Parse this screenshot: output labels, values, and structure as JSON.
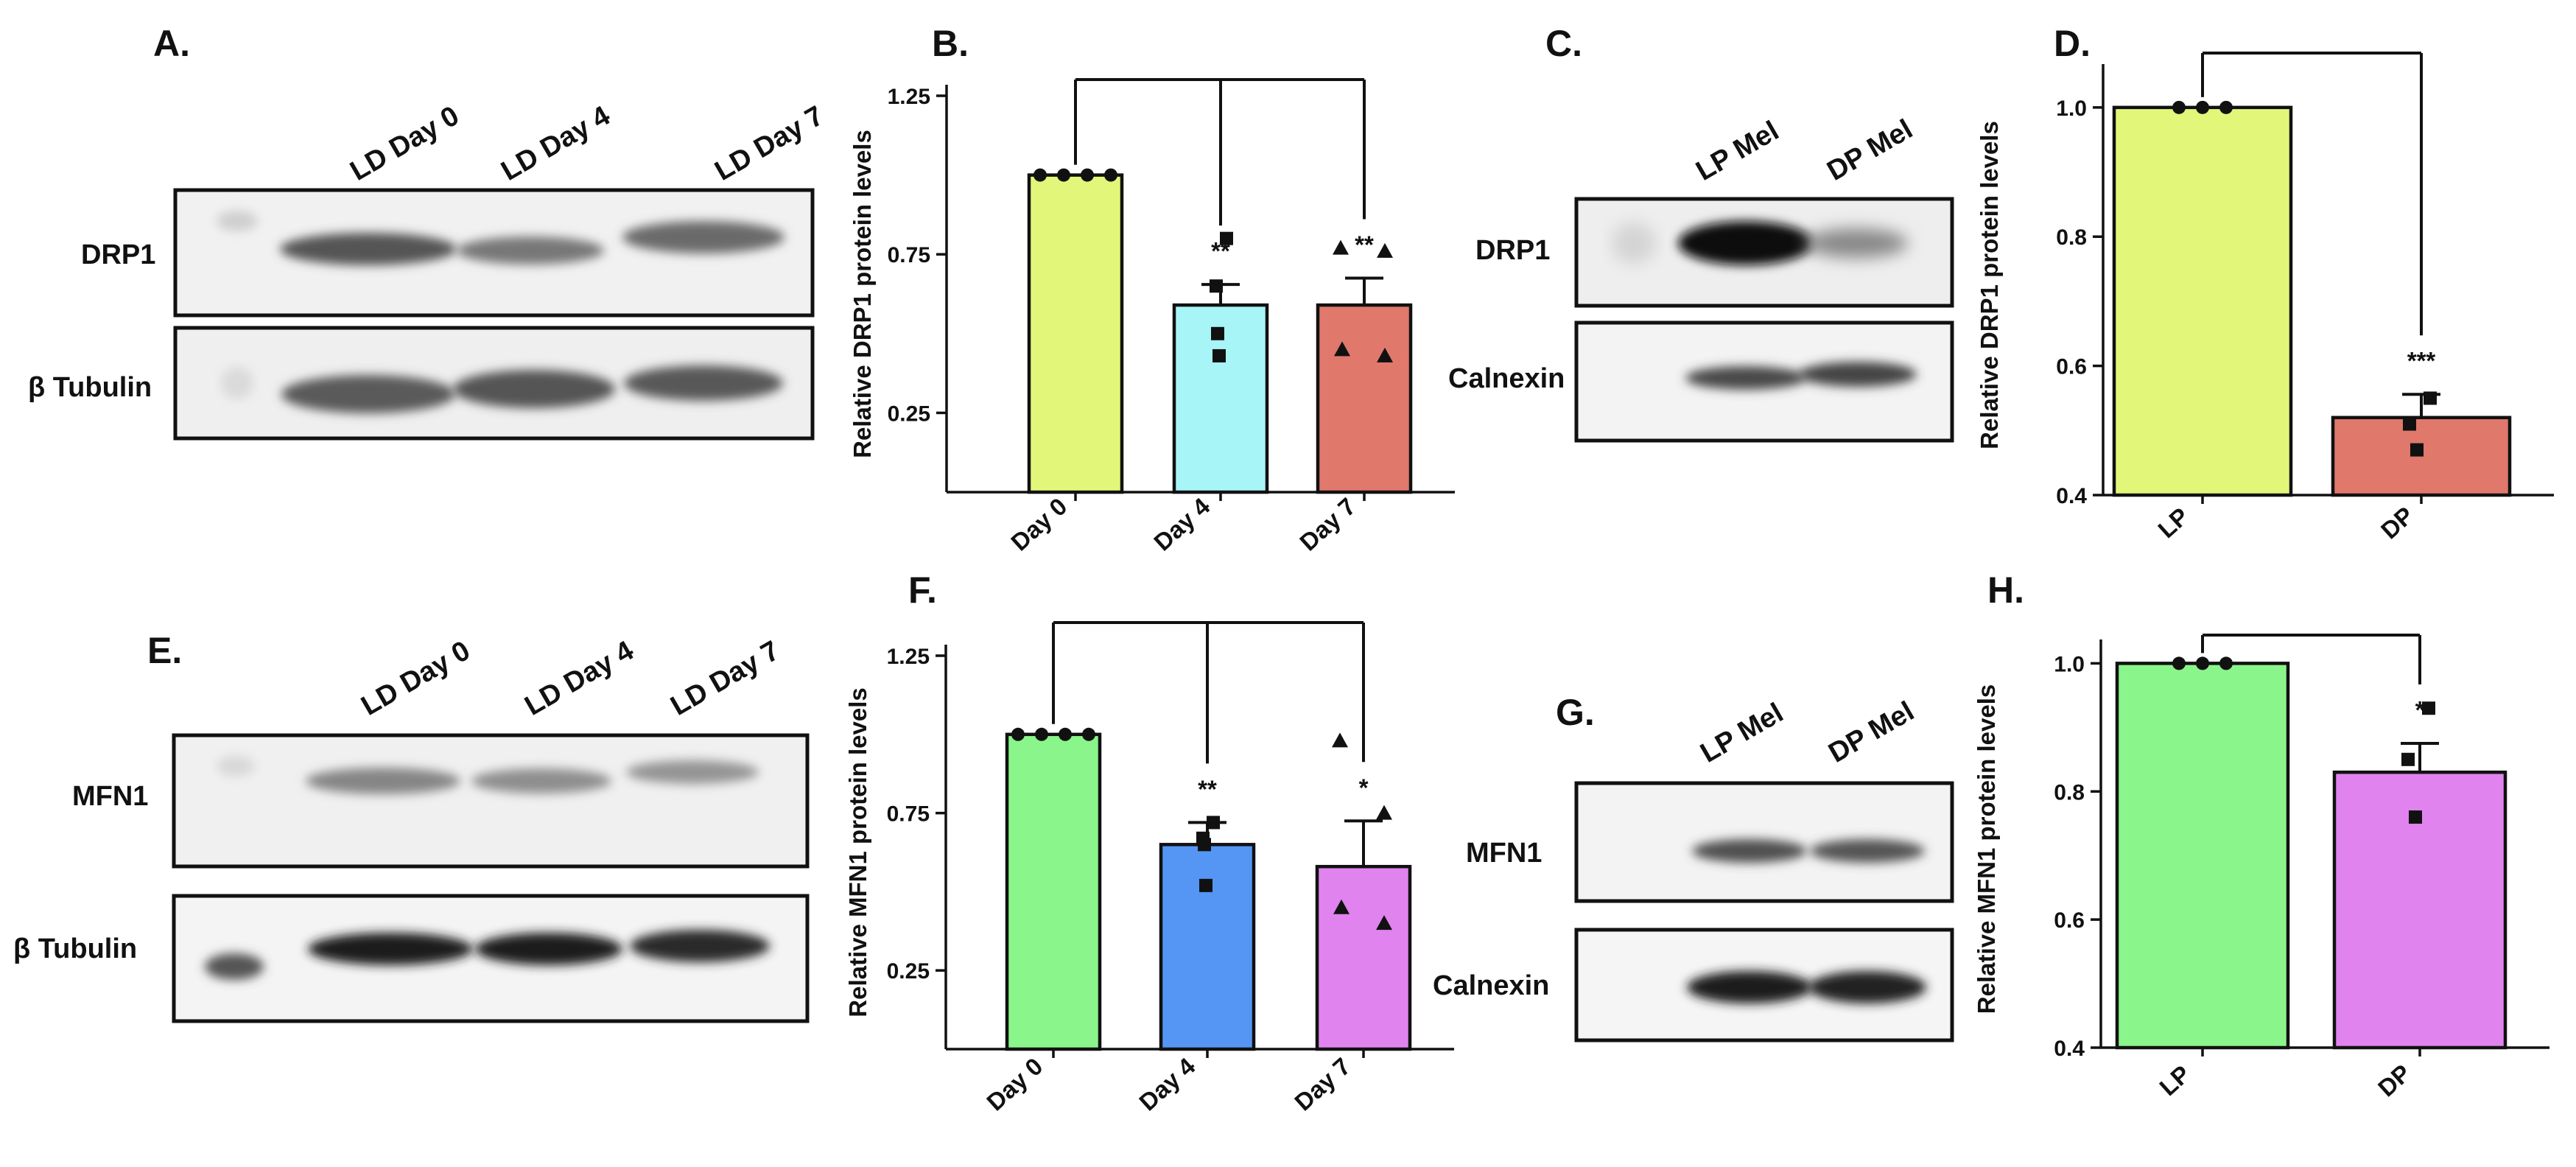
{
  "panels": {
    "A": "A.",
    "B": "B.",
    "C": "C.",
    "D": "D.",
    "E": "E.",
    "F": "F.",
    "G": "G.",
    "H": "H."
  },
  "blots": {
    "A": {
      "lanes": [
        "LD Day 0",
        "LD Day 4",
        "LD Day 7"
      ],
      "rows": [
        "DRP1",
        "β Tubulin"
      ]
    },
    "C": {
      "lanes": [
        "LP Mel",
        "DP Mel"
      ],
      "rows": [
        "DRP1",
        "Calnexin"
      ]
    },
    "E": {
      "lanes": [
        "LD Day 0",
        "LD Day 4",
        "LD Day 7"
      ],
      "rows": [
        "MFN1",
        "β Tubulin"
      ]
    },
    "G": {
      "lanes": [
        "LP Mel",
        "DP Mel"
      ],
      "rows": [
        "MFN1",
        "Calnexin"
      ]
    }
  },
  "colors": {
    "B": [
      "#e2f77a",
      "#a8f5f8",
      "#e0786c"
    ],
    "D": [
      "#e2f77a",
      "#e0786c"
    ],
    "F": [
      "#8af58a",
      "#5596f5",
      "#e083ef"
    ],
    "H": [
      "#8af58a",
      "#e083ef"
    ]
  },
  "chart_data": [
    {
      "id": "B",
      "type": "bar",
      "categories": [
        "Day 0",
        "Day 4",
        "Day 7"
      ],
      "values": [
        1.0,
        0.59,
        0.59
      ],
      "errors": [
        0.0,
        0.065,
        0.085
      ],
      "points": [
        [
          1.0,
          1.0,
          1.0,
          1.0
        ],
        [
          0.8,
          0.65,
          0.5,
          0.43
        ],
        [
          0.77,
          0.76,
          0.43,
          0.45
        ]
      ],
      "markers": [
        "circle",
        "square",
        "triangle"
      ],
      "significance": [
        "",
        "**",
        "**"
      ],
      "xlabel": "",
      "ylabel": "Relative DRP1 protein levels",
      "ylim": [
        0.0,
        1.25
      ],
      "yticks": [
        "0.25",
        "0.75",
        "1.25"
      ],
      "bracket": "Day 0 vs Day 4, Day 7"
    },
    {
      "id": "D",
      "type": "bar",
      "categories": [
        "LP",
        "DP"
      ],
      "values": [
        1.0,
        0.52
      ],
      "errors": [
        0.0,
        0.036
      ],
      "points": [
        [
          1.0,
          1.0,
          1.0
        ],
        [
          0.55,
          0.51,
          0.47
        ]
      ],
      "markers": [
        "circle",
        "square"
      ],
      "significance": [
        "",
        "***"
      ],
      "xlabel": "",
      "ylabel": "Relative DRP1 protein levels",
      "ylim": [
        0.4,
        1.05
      ],
      "yticks": [
        "0.4",
        "0.6",
        "0.8",
        "1.0"
      ],
      "bracket": "LP vs DP"
    },
    {
      "id": "F",
      "type": "bar",
      "categories": [
        "Day 0",
        "Day 4",
        "Day 7"
      ],
      "values": [
        1.0,
        0.65,
        0.58
      ],
      "errors": [
        0.0,
        0.07,
        0.145
      ],
      "points": [
        [
          1.0,
          1.0,
          1.0,
          1.0
        ],
        [
          0.72,
          0.67,
          0.65,
          0.52
        ],
        [
          0.98,
          0.75,
          0.4,
          0.45
        ]
      ],
      "markers": [
        "circle",
        "square",
        "triangle"
      ],
      "significance": [
        "",
        "**",
        "*"
      ],
      "xlabel": "",
      "ylabel": "Relative MFN1 protein levels",
      "ylim": [
        0.0,
        1.25
      ],
      "yticks": [
        "0.25",
        "0.75",
        "1.25"
      ],
      "bracket": "Day 0 vs Day 4, Day 7"
    },
    {
      "id": "H",
      "type": "bar",
      "categories": [
        "LP",
        "DP"
      ],
      "values": [
        1.0,
        0.83
      ],
      "errors": [
        0.0,
        0.045
      ],
      "points": [
        [
          1.0,
          1.0,
          1.0
        ],
        [
          0.93,
          0.85,
          0.76
        ]
      ],
      "markers": [
        "circle",
        "square"
      ],
      "significance": [
        "",
        "*"
      ],
      "xlabel": "",
      "ylabel": "Relative MFN1 protein levels",
      "ylim": [
        0.4,
        1.02
      ],
      "yticks": [
        "0.4",
        "0.6",
        "0.8",
        "1.0"
      ],
      "bracket": "LP vs DP"
    }
  ]
}
